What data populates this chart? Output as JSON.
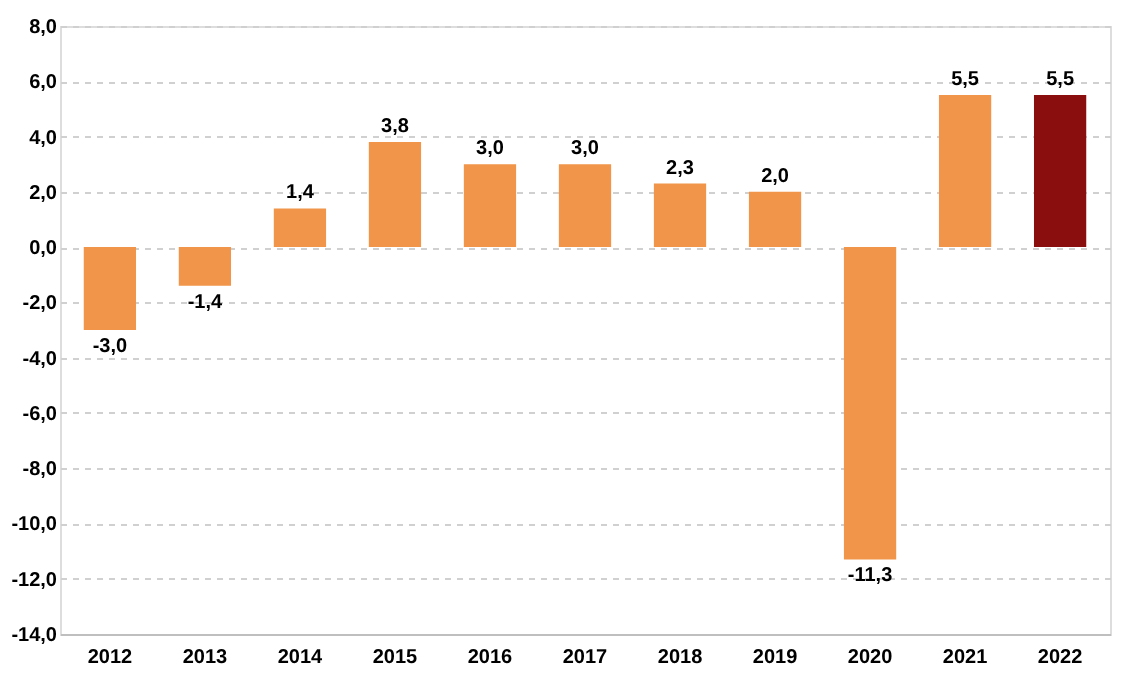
{
  "chart_data": {
    "type": "bar",
    "categories": [
      "2012",
      "2013",
      "2014",
      "2015",
      "2016",
      "2017",
      "2018",
      "2019",
      "2020",
      "2021",
      "2022"
    ],
    "values": [
      -3.0,
      -1.4,
      1.4,
      3.8,
      3.0,
      3.0,
      2.3,
      2.0,
      -11.3,
      5.5,
      5.5
    ],
    "colors": [
      "#f0954a",
      "#f0954a",
      "#f0954a",
      "#f0954a",
      "#f0954a",
      "#f0954a",
      "#f0954a",
      "#f0954a",
      "#f0954a",
      "#f0954a",
      "#8b0e0e"
    ],
    "value_labels": [
      "-3,0",
      "-1,4",
      "1,4",
      "3,8",
      "3,0",
      "3,0",
      "2,3",
      "2,0",
      "-11,3",
      "5,5",
      "5,5"
    ],
    "ylim": [
      -14,
      8
    ],
    "yticks": [
      {
        "value": -14,
        "label": "-14,0"
      },
      {
        "value": -12,
        "label": "-12,0"
      },
      {
        "value": -10,
        "label": "-10,0"
      },
      {
        "value": -8,
        "label": "-8,0"
      },
      {
        "value": -6,
        "label": "-6,0"
      },
      {
        "value": -4,
        "label": "-4,0"
      },
      {
        "value": -2,
        "label": "-2,0"
      },
      {
        "value": 0,
        "label": "0,0"
      },
      {
        "value": 2,
        "label": "2,0"
      },
      {
        "value": 4,
        "label": "4,0"
      },
      {
        "value": 6,
        "label": "6,0"
      },
      {
        "value": 8,
        "label": "8,0"
      }
    ],
    "grid": "y"
  }
}
